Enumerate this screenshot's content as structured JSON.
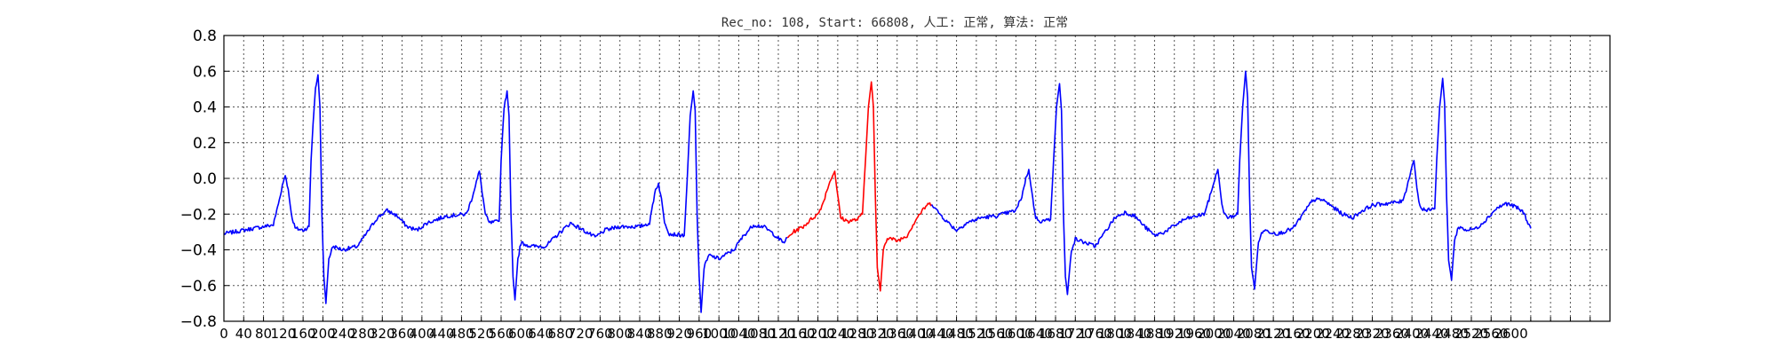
{
  "chart_data": {
    "type": "line",
    "title": "Rec_no: 108, Start: 66808, 人工: 正常, 算法: 正常",
    "xlabel": "",
    "ylabel": "",
    "xlim": [
      0,
      2800
    ],
    "ylim": [
      -0.8,
      0.8
    ],
    "grid": true,
    "yticks": [
      -0.8,
      -0.6,
      -0.4,
      -0.2,
      0.0,
      0.2,
      0.4,
      0.6,
      0.8
    ],
    "ytick_labels": [
      "−0.8",
      "−0.6",
      "−0.4",
      "−0.2",
      "0.0",
      "0.2",
      "0.4",
      "0.6",
      "0.8"
    ],
    "xtick_step": 40,
    "xtick_max": 2800,
    "xtick_label_max": 2600,
    "series_colors": {
      "normal": "#0000ff",
      "highlight": "#ff0000"
    },
    "highlight_range": [
      1140,
      1430
    ],
    "keypoints": [
      [
        0,
        -0.31
      ],
      [
        40,
        -0.29
      ],
      [
        80,
        -0.27
      ],
      [
        100,
        -0.26
      ],
      [
        105,
        -0.2
      ],
      [
        112,
        -0.12
      ],
      [
        118,
        -0.04
      ],
      [
        124,
        0.02
      ],
      [
        130,
        -0.06
      ],
      [
        136,
        -0.2
      ],
      [
        144,
        -0.28
      ],
      [
        160,
        -0.29
      ],
      [
        172,
        -0.27
      ],
      [
        176,
        0.1
      ],
      [
        180,
        0.3
      ],
      [
        185,
        0.5
      ],
      [
        190,
        0.58
      ],
      [
        194,
        0.4
      ],
      [
        198,
        -0.2
      ],
      [
        202,
        -0.55
      ],
      [
        206,
        -0.7
      ],
      [
        212,
        -0.45
      ],
      [
        220,
        -0.38
      ],
      [
        240,
        -0.4
      ],
      [
        270,
        -0.38
      ],
      [
        290,
        -0.3
      ],
      [
        310,
        -0.22
      ],
      [
        330,
        -0.18
      ],
      [
        350,
        -0.21
      ],
      [
        370,
        -0.27
      ],
      [
        390,
        -0.29
      ],
      [
        410,
        -0.25
      ],
      [
        450,
        -0.21
      ],
      [
        490,
        -0.2
      ],
      [
        500,
        -0.12
      ],
      [
        510,
        -0.02
      ],
      [
        516,
        0.04
      ],
      [
        522,
        -0.08
      ],
      [
        528,
        -0.2
      ],
      [
        536,
        -0.25
      ],
      [
        556,
        -0.24
      ],
      [
        560,
        0.1
      ],
      [
        566,
        0.4
      ],
      [
        572,
        0.49
      ],
      [
        576,
        0.35
      ],
      [
        580,
        -0.2
      ],
      [
        584,
        -0.55
      ],
      [
        588,
        -0.68
      ],
      [
        594,
        -0.45
      ],
      [
        600,
        -0.36
      ],
      [
        620,
        -0.38
      ],
      [
        650,
        -0.38
      ],
      [
        680,
        -0.3
      ],
      [
        700,
        -0.25
      ],
      [
        720,
        -0.28
      ],
      [
        750,
        -0.33
      ],
      [
        770,
        -0.29
      ],
      [
        800,
        -0.27
      ],
      [
        840,
        -0.27
      ],
      [
        860,
        -0.25
      ],
      [
        866,
        -0.15
      ],
      [
        872,
        -0.06
      ],
      [
        878,
        -0.03
      ],
      [
        884,
        -0.12
      ],
      [
        890,
        -0.24
      ],
      [
        900,
        -0.31
      ],
      [
        930,
        -0.32
      ],
      [
        936,
        0.0
      ],
      [
        942,
        0.35
      ],
      [
        948,
        0.49
      ],
      [
        952,
        0.38
      ],
      [
        956,
        -0.2
      ],
      [
        960,
        -0.55
      ],
      [
        964,
        -0.75
      ],
      [
        970,
        -0.5
      ],
      [
        980,
        -0.43
      ],
      [
        1000,
        -0.45
      ],
      [
        1030,
        -0.4
      ],
      [
        1050,
        -0.32
      ],
      [
        1070,
        -0.26
      ],
      [
        1090,
        -0.27
      ],
      [
        1110,
        -0.31
      ],
      [
        1130,
        -0.36
      ],
      [
        1150,
        -0.3
      ],
      [
        1170,
        -0.27
      ],
      [
        1190,
        -0.22
      ],
      [
        1200,
        -0.2
      ],
      [
        1210,
        -0.14
      ],
      [
        1220,
        -0.05
      ],
      [
        1228,
        0.01
      ],
      [
        1234,
        0.04
      ],
      [
        1240,
        -0.1
      ],
      [
        1246,
        -0.22
      ],
      [
        1260,
        -0.24
      ],
      [
        1280,
        -0.23
      ],
      [
        1290,
        -0.2
      ],
      [
        1296,
        0.1
      ],
      [
        1302,
        0.4
      ],
      [
        1308,
        0.54
      ],
      [
        1312,
        0.4
      ],
      [
        1316,
        -0.1
      ],
      [
        1320,
        -0.5
      ],
      [
        1326,
        -0.63
      ],
      [
        1332,
        -0.4
      ],
      [
        1340,
        -0.33
      ],
      [
        1360,
        -0.35
      ],
      [
        1380,
        -0.32
      ],
      [
        1400,
        -0.22
      ],
      [
        1420,
        -0.15
      ],
      [
        1430,
        -0.14
      ],
      [
        1440,
        -0.18
      ],
      [
        1460,
        -0.24
      ],
      [
        1480,
        -0.29
      ],
      [
        1500,
        -0.25
      ],
      [
        1530,
        -0.22
      ],
      [
        1560,
        -0.21
      ],
      [
        1600,
        -0.18
      ],
      [
        1612,
        -0.1
      ],
      [
        1620,
        0.0
      ],
      [
        1626,
        0.05
      ],
      [
        1632,
        -0.08
      ],
      [
        1640,
        -0.22
      ],
      [
        1650,
        -0.24
      ],
      [
        1670,
        -0.23
      ],
      [
        1676,
        0.1
      ],
      [
        1682,
        0.4
      ],
      [
        1688,
        0.53
      ],
      [
        1692,
        0.38
      ],
      [
        1696,
        -0.2
      ],
      [
        1700,
        -0.55
      ],
      [
        1704,
        -0.65
      ],
      [
        1712,
        -0.4
      ],
      [
        1720,
        -0.34
      ],
      [
        1740,
        -0.36
      ],
      [
        1760,
        -0.38
      ],
      [
        1780,
        -0.3
      ],
      [
        1800,
        -0.22
      ],
      [
        1820,
        -0.19
      ],
      [
        1840,
        -0.21
      ],
      [
        1860,
        -0.27
      ],
      [
        1880,
        -0.32
      ],
      [
        1900,
        -0.3
      ],
      [
        1940,
        -0.23
      ],
      [
        1980,
        -0.2
      ],
      [
        1990,
        -0.12
      ],
      [
        2000,
        -0.02
      ],
      [
        2008,
        0.05
      ],
      [
        2014,
        -0.1
      ],
      [
        2020,
        -0.2
      ],
      [
        2030,
        -0.22
      ],
      [
        2048,
        -0.2
      ],
      [
        2052,
        0.1
      ],
      [
        2058,
        0.4
      ],
      [
        2064,
        0.6
      ],
      [
        2068,
        0.45
      ],
      [
        2072,
        -0.1
      ],
      [
        2076,
        -0.5
      ],
      [
        2082,
        -0.62
      ],
      [
        2090,
        -0.35
      ],
      [
        2100,
        -0.29
      ],
      [
        2130,
        -0.31
      ],
      [
        2160,
        -0.28
      ],
      [
        2180,
        -0.2
      ],
      [
        2200,
        -0.12
      ],
      [
        2220,
        -0.12
      ],
      [
        2240,
        -0.16
      ],
      [
        2260,
        -0.2
      ],
      [
        2280,
        -0.22
      ],
      [
        2300,
        -0.18
      ],
      [
        2320,
        -0.15
      ],
      [
        2350,
        -0.14
      ],
      [
        2380,
        -0.13
      ],
      [
        2390,
        -0.05
      ],
      [
        2398,
        0.05
      ],
      [
        2404,
        0.1
      ],
      [
        2410,
        -0.05
      ],
      [
        2416,
        -0.16
      ],
      [
        2430,
        -0.18
      ],
      [
        2446,
        -0.17
      ],
      [
        2450,
        0.1
      ],
      [
        2456,
        0.4
      ],
      [
        2462,
        0.56
      ],
      [
        2466,
        0.42
      ],
      [
        2470,
        -0.1
      ],
      [
        2474,
        -0.45
      ],
      [
        2480,
        -0.57
      ],
      [
        2486,
        -0.35
      ],
      [
        2494,
        -0.27
      ],
      [
        2510,
        -0.29
      ],
      [
        2530,
        -0.28
      ],
      [
        2550,
        -0.23
      ],
      [
        2570,
        -0.17
      ],
      [
        2590,
        -0.14
      ],
      [
        2610,
        -0.16
      ],
      [
        2625,
        -0.19
      ],
      [
        2640,
        -0.28
      ]
    ]
  }
}
